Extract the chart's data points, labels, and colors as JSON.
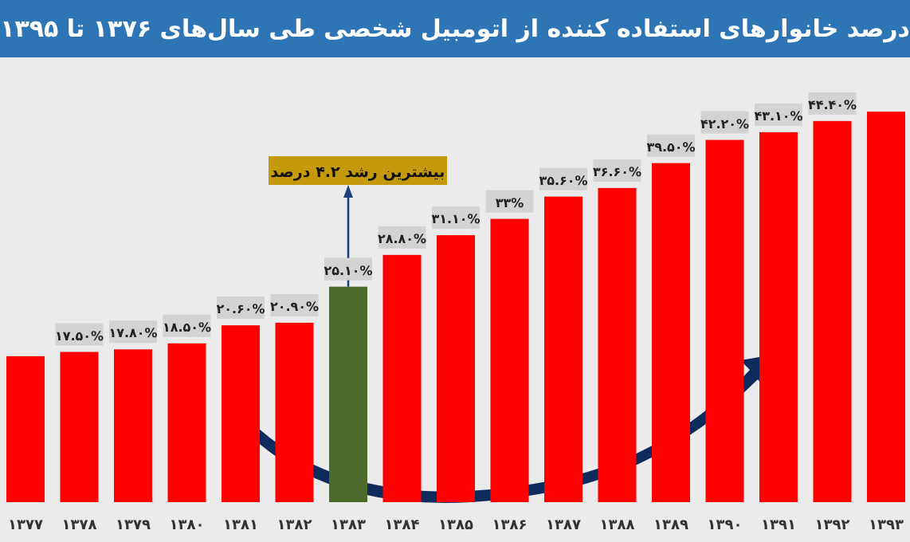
{
  "chart_data": {
    "type": "bar",
    "title": "درصد خانوارهای استفاده کننده از اتومبیل شخصی طی سال‌های ۱۳۷۶ تا ۱۳۹۵",
    "categories": [
      "۱۳۷۷",
      "۱۳۷۸",
      "۱۳۷۹",
      "۱۳۸۰",
      "۱۳۸۱",
      "۱۳۸۲",
      "۱۳۸۳",
      "۱۳۸۴",
      "۱۳۸۵",
      "۱۳۸۶",
      "۱۳۸۷",
      "۱۳۸۸",
      "۱۳۸۹",
      "۱۳۹۰",
      "۱۳۹۱",
      "۱۳۹۲",
      "۱۳۹۳"
    ],
    "values": [
      17,
      17.5,
      17.8,
      18.5,
      20.6,
      20.9,
      25.1,
      28.8,
      31.1,
      33,
      35.6,
      36.6,
      39.5,
      42.2,
      43.1,
      44.4,
      45.5
    ],
    "value_labels": [
      null,
      "۱۷.۵۰%",
      "۱۷.۸۰%",
      "۱۸.۵۰%",
      "۲۰.۶۰%",
      "۲۰.۹۰%",
      "۲۵.۱۰%",
      "۲۸.۸۰%",
      "۳۱.۱۰%",
      "۳۳%",
      "۳۵.۶۰%",
      "۳۶.۶۰%",
      "۳۹.۵۰%",
      "۴۲.۲۰%",
      "۴۳.۱۰%",
      "۴۴.۴۰%",
      null
    ],
    "colors": [
      "#ff0000",
      "#ff0000",
      "#ff0000",
      "#ff0000",
      "#ff0000",
      "#ff0000",
      "#4a6b2a",
      "#ff0000",
      "#ff0000",
      "#ff0000",
      "#ff0000",
      "#ff0000",
      "#ff0000",
      "#ff0000",
      "#ff0000",
      "#ff0000",
      "#ff0000"
    ],
    "annotations": [
      {
        "text": "بیشترین رشد ۴.۲ درصد",
        "x": "۱۳۸۳",
        "y": 25.1
      }
    ]
  }
}
